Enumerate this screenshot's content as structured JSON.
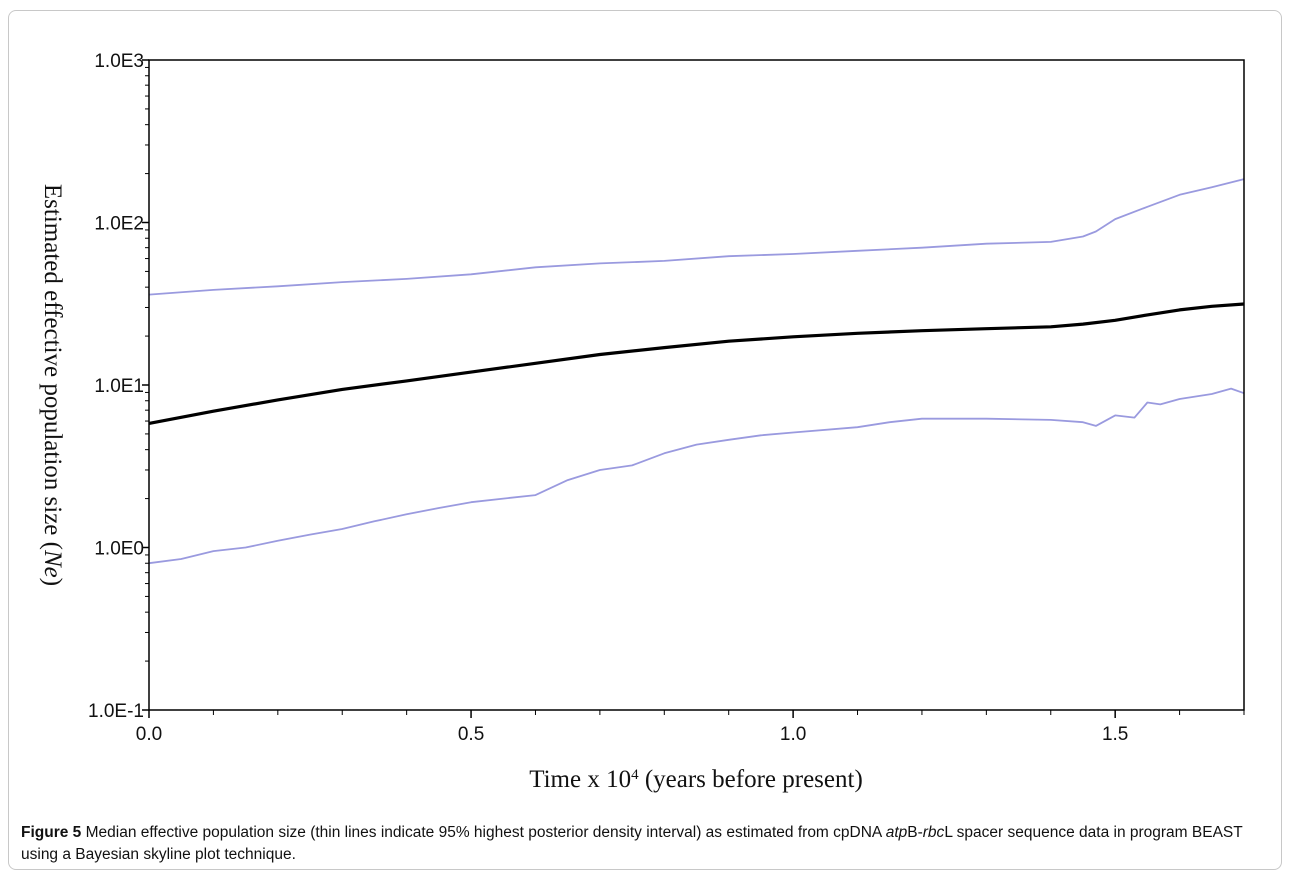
{
  "chart_data": {
    "type": "line",
    "title": "",
    "xlabel": "Time x 10",
    "xlabel_sup": "4",
    "xlabel_rest": " (years before present)",
    "ylabel": "Estimated effective population size (",
    "ylabel_italic": "Ne",
    "ylabel_end": ")",
    "yscale": "log",
    "xlim": [
      0,
      1.7
    ],
    "ylim": [
      0.1,
      1000
    ],
    "x_ticks": [
      0.0,
      0.5,
      1.0,
      1.5
    ],
    "x_tick_labels": [
      "0.0",
      "0.5",
      "1.0",
      "1.5"
    ],
    "y_ticks": [
      0.1,
      1,
      10,
      100,
      1000
    ],
    "y_tick_labels": [
      "1.0E-1",
      "1.0E0",
      "1.0E1",
      "1.0E2",
      "1.0E3"
    ],
    "grid": false,
    "series": [
      {
        "role": "upper-hpd",
        "color": "#9a9adf",
        "x": [
          0,
          0.1,
          0.2,
          0.3,
          0.4,
          0.5,
          0.6,
          0.7,
          0.8,
          0.9,
          1.0,
          1.1,
          1.2,
          1.3,
          1.4,
          1.45,
          1.47,
          1.5,
          1.55,
          1.6,
          1.65,
          1.7
        ],
        "y": [
          36,
          38.5,
          40.5,
          43,
          45,
          48,
          53,
          56,
          58,
          62,
          64,
          67,
          70,
          74,
          76,
          82,
          88,
          105,
          125,
          148,
          165,
          185
        ]
      },
      {
        "role": "median",
        "color": "#000000",
        "x": [
          0,
          0.1,
          0.2,
          0.3,
          0.4,
          0.5,
          0.6,
          0.7,
          0.8,
          0.9,
          1.0,
          1.1,
          1.2,
          1.3,
          1.4,
          1.45,
          1.5,
          1.55,
          1.6,
          1.65,
          1.7
        ],
        "y": [
          5.8,
          6.9,
          8.1,
          9.4,
          10.6,
          12,
          13.6,
          15.4,
          17,
          18.6,
          19.8,
          20.8,
          21.6,
          22.2,
          22.8,
          23.7,
          25,
          27,
          29,
          30.5,
          31.5
        ]
      },
      {
        "role": "lower-hpd",
        "color": "#9a9adf",
        "x": [
          0,
          0.05,
          0.1,
          0.15,
          0.2,
          0.25,
          0.3,
          0.35,
          0.4,
          0.45,
          0.5,
          0.55,
          0.6,
          0.65,
          0.7,
          0.75,
          0.8,
          0.85,
          0.9,
          0.95,
          1.0,
          1.1,
          1.15,
          1.2,
          1.3,
          1.4,
          1.45,
          1.47,
          1.5,
          1.53,
          1.55,
          1.57,
          1.6,
          1.65,
          1.68,
          1.7
        ],
        "y": [
          0.8,
          0.85,
          0.95,
          1.0,
          1.1,
          1.2,
          1.3,
          1.45,
          1.6,
          1.75,
          1.9,
          2.0,
          2.1,
          2.6,
          3.0,
          3.2,
          3.8,
          4.3,
          4.6,
          4.9,
          5.1,
          5.5,
          5.9,
          6.2,
          6.2,
          6.1,
          5.9,
          5.6,
          6.5,
          6.3,
          7.8,
          7.6,
          8.2,
          8.8,
          9.5,
          8.9
        ]
      }
    ]
  },
  "caption": {
    "label": "Figure 5",
    "text_part1": " Median effective population size (thin lines indicate 95% highest posterior density interval) as estimated from cpDNA ",
    "gene1": "atp",
    "gene1b": "B-",
    "gene2": "rbc",
    "gene2b": "L",
    "text_part2": " spacer sequence data in program BEAST using a Bayesian skyline plot technique",
    "period": "."
  }
}
